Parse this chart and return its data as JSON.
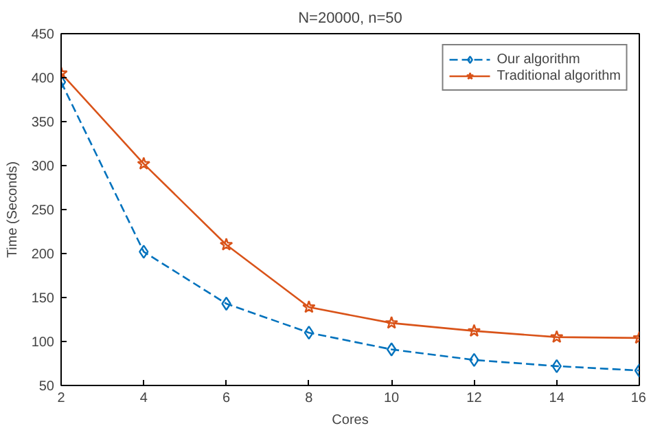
{
  "chart_data": {
    "type": "line",
    "title": "N=20000, n=50",
    "xlabel": "Cores",
    "ylabel": "Time (Seconds)",
    "x": [
      2,
      4,
      6,
      8,
      10,
      12,
      14,
      16
    ],
    "series": [
      {
        "name": "Our algorithm",
        "color": "#0072bd",
        "marker": "diamond",
        "line_style": "dashed",
        "values": [
          395,
          202,
          143,
          110,
          91,
          79,
          72,
          67
        ]
      },
      {
        "name": "Traditional algorithm",
        "color": "#d95319",
        "marker": "star",
        "line_style": "solid",
        "values": [
          405,
          302,
          210,
          139,
          121,
          112,
          105,
          104
        ]
      }
    ],
    "xlim": [
      2,
      16
    ],
    "xticks": [
      2,
      4,
      6,
      8,
      10,
      12,
      14,
      16
    ],
    "ylim": [
      50,
      450
    ],
    "yticks": [
      50,
      100,
      150,
      200,
      250,
      300,
      350,
      400,
      450
    ],
    "grid": false,
    "legend": "top right"
  }
}
